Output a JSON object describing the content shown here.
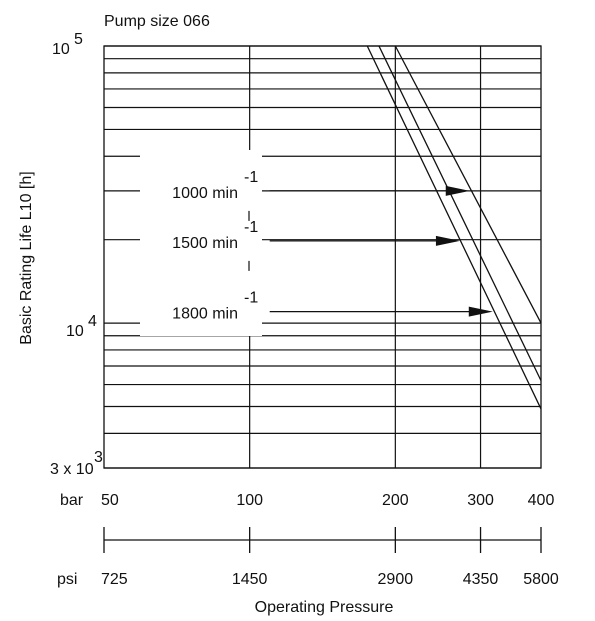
{
  "chart_data": {
    "type": "line",
    "title": "Pump size 066",
    "xlabel": "Operating Pressure",
    "ylabel": "Basic Rating Life L10 [h]",
    "x_scale": "log",
    "y_scale": "log",
    "xlim": [
      50,
      400
    ],
    "ylim": [
      3000,
      100000
    ],
    "x_unit_bar": "bar",
    "x_unit_psi": "psi",
    "x_ticks_bar": [
      {
        "value": 50,
        "label": "50"
      },
      {
        "value": 100,
        "label": "100"
      },
      {
        "value": 200,
        "label": "200"
      },
      {
        "value": 300,
        "label": "300"
      },
      {
        "value": 400,
        "label": "400"
      }
    ],
    "x_ticks_psi": [
      {
        "value": 50,
        "label": "725"
      },
      {
        "value": 100,
        "label": "1450"
      },
      {
        "value": 200,
        "label": "2900"
      },
      {
        "value": 300,
        "label": "4350"
      },
      {
        "value": 400,
        "label": "5800"
      }
    ],
    "y_tick_labels": {
      "top_base": "10",
      "top_exp": "5",
      "mid_base": "10",
      "mid_exp": "4",
      "bot_base": "3 x 10",
      "bot_exp": "3"
    },
    "y_gridlines": [
      3000,
      4000,
      5000,
      6000,
      7000,
      8000,
      9000,
      10000,
      20000,
      30000,
      40000,
      50000,
      60000,
      70000,
      80000,
      90000,
      100000
    ],
    "x_gridlines": [
      100,
      200,
      300
    ],
    "series": [
      {
        "name": "1000 min",
        "exp": "-1",
        "x": [
          200,
          400
        ],
        "y": [
          100000,
          10000
        ],
        "arrow_y": 30000,
        "arrow_x": [
          110,
          285
        ]
      },
      {
        "name": "1500 min",
        "exp": "-1",
        "x": [
          185,
          400
        ],
        "y": [
          100000,
          6200
        ],
        "arrow_y": 19800,
        "arrow_x": [
          110,
          272
        ]
      },
      {
        "name": "1800 min",
        "exp": "-1",
        "x": [
          175,
          400
        ],
        "y": [
          100000,
          4900
        ],
        "arrow_y": 11000,
        "arrow_x": [
          110,
          318
        ]
      }
    ]
  }
}
